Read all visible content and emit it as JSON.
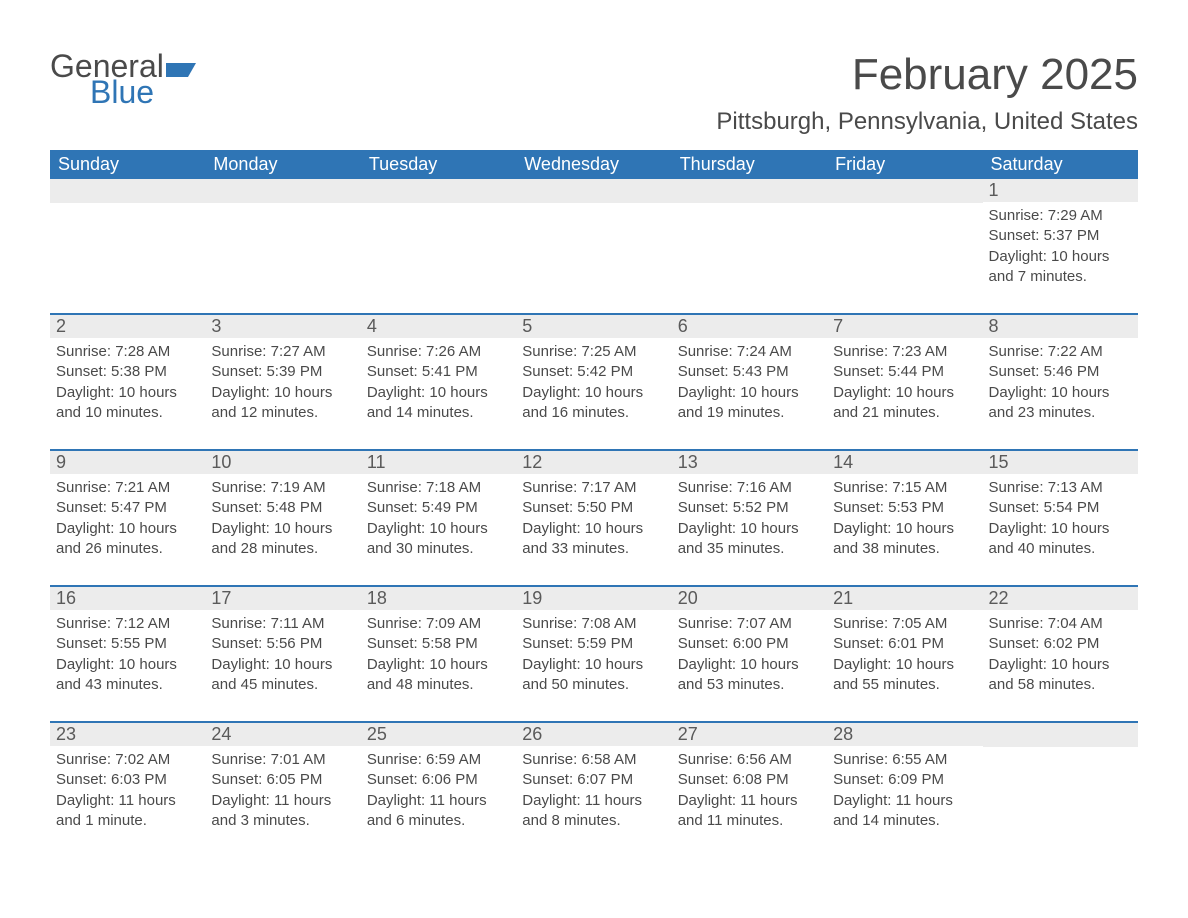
{
  "brand": {
    "word1": "General",
    "word2": "Blue",
    "accent_color": "#2f75b5"
  },
  "title": "February 2025",
  "location": "Pittsburgh, Pennsylvania, United States",
  "header_bg": "#2f75b5",
  "header_text_color": "#ffffff",
  "daynum_bg": "#ececec",
  "border_color": "#2f75b5",
  "text_color": "#4a4a4a",
  "background_color": "#ffffff",
  "weekdays": [
    "Sunday",
    "Monday",
    "Tuesday",
    "Wednesday",
    "Thursday",
    "Friday",
    "Saturday"
  ],
  "weeks": [
    [
      {
        "n": "",
        "sr": "",
        "ss": "",
        "dl": ""
      },
      {
        "n": "",
        "sr": "",
        "ss": "",
        "dl": ""
      },
      {
        "n": "",
        "sr": "",
        "ss": "",
        "dl": ""
      },
      {
        "n": "",
        "sr": "",
        "ss": "",
        "dl": ""
      },
      {
        "n": "",
        "sr": "",
        "ss": "",
        "dl": ""
      },
      {
        "n": "",
        "sr": "",
        "ss": "",
        "dl": ""
      },
      {
        "n": "1",
        "sr": "Sunrise: 7:29 AM",
        "ss": "Sunset: 5:37 PM",
        "dl": "Daylight: 10 hours and 7 minutes."
      }
    ],
    [
      {
        "n": "2",
        "sr": "Sunrise: 7:28 AM",
        "ss": "Sunset: 5:38 PM",
        "dl": "Daylight: 10 hours and 10 minutes."
      },
      {
        "n": "3",
        "sr": "Sunrise: 7:27 AM",
        "ss": "Sunset: 5:39 PM",
        "dl": "Daylight: 10 hours and 12 minutes."
      },
      {
        "n": "4",
        "sr": "Sunrise: 7:26 AM",
        "ss": "Sunset: 5:41 PM",
        "dl": "Daylight: 10 hours and 14 minutes."
      },
      {
        "n": "5",
        "sr": "Sunrise: 7:25 AM",
        "ss": "Sunset: 5:42 PM",
        "dl": "Daylight: 10 hours and 16 minutes."
      },
      {
        "n": "6",
        "sr": "Sunrise: 7:24 AM",
        "ss": "Sunset: 5:43 PM",
        "dl": "Daylight: 10 hours and 19 minutes."
      },
      {
        "n": "7",
        "sr": "Sunrise: 7:23 AM",
        "ss": "Sunset: 5:44 PM",
        "dl": "Daylight: 10 hours and 21 minutes."
      },
      {
        "n": "8",
        "sr": "Sunrise: 7:22 AM",
        "ss": "Sunset: 5:46 PM",
        "dl": "Daylight: 10 hours and 23 minutes."
      }
    ],
    [
      {
        "n": "9",
        "sr": "Sunrise: 7:21 AM",
        "ss": "Sunset: 5:47 PM",
        "dl": "Daylight: 10 hours and 26 minutes."
      },
      {
        "n": "10",
        "sr": "Sunrise: 7:19 AM",
        "ss": "Sunset: 5:48 PM",
        "dl": "Daylight: 10 hours and 28 minutes."
      },
      {
        "n": "11",
        "sr": "Sunrise: 7:18 AM",
        "ss": "Sunset: 5:49 PM",
        "dl": "Daylight: 10 hours and 30 minutes."
      },
      {
        "n": "12",
        "sr": "Sunrise: 7:17 AM",
        "ss": "Sunset: 5:50 PM",
        "dl": "Daylight: 10 hours and 33 minutes."
      },
      {
        "n": "13",
        "sr": "Sunrise: 7:16 AM",
        "ss": "Sunset: 5:52 PM",
        "dl": "Daylight: 10 hours and 35 minutes."
      },
      {
        "n": "14",
        "sr": "Sunrise: 7:15 AM",
        "ss": "Sunset: 5:53 PM",
        "dl": "Daylight: 10 hours and 38 minutes."
      },
      {
        "n": "15",
        "sr": "Sunrise: 7:13 AM",
        "ss": "Sunset: 5:54 PM",
        "dl": "Daylight: 10 hours and 40 minutes."
      }
    ],
    [
      {
        "n": "16",
        "sr": "Sunrise: 7:12 AM",
        "ss": "Sunset: 5:55 PM",
        "dl": "Daylight: 10 hours and 43 minutes."
      },
      {
        "n": "17",
        "sr": "Sunrise: 7:11 AM",
        "ss": "Sunset: 5:56 PM",
        "dl": "Daylight: 10 hours and 45 minutes."
      },
      {
        "n": "18",
        "sr": "Sunrise: 7:09 AM",
        "ss": "Sunset: 5:58 PM",
        "dl": "Daylight: 10 hours and 48 minutes."
      },
      {
        "n": "19",
        "sr": "Sunrise: 7:08 AM",
        "ss": "Sunset: 5:59 PM",
        "dl": "Daylight: 10 hours and 50 minutes."
      },
      {
        "n": "20",
        "sr": "Sunrise: 7:07 AM",
        "ss": "Sunset: 6:00 PM",
        "dl": "Daylight: 10 hours and 53 minutes."
      },
      {
        "n": "21",
        "sr": "Sunrise: 7:05 AM",
        "ss": "Sunset: 6:01 PM",
        "dl": "Daylight: 10 hours and 55 minutes."
      },
      {
        "n": "22",
        "sr": "Sunrise: 7:04 AM",
        "ss": "Sunset: 6:02 PM",
        "dl": "Daylight: 10 hours and 58 minutes."
      }
    ],
    [
      {
        "n": "23",
        "sr": "Sunrise: 7:02 AM",
        "ss": "Sunset: 6:03 PM",
        "dl": "Daylight: 11 hours and 1 minute."
      },
      {
        "n": "24",
        "sr": "Sunrise: 7:01 AM",
        "ss": "Sunset: 6:05 PM",
        "dl": "Daylight: 11 hours and 3 minutes."
      },
      {
        "n": "25",
        "sr": "Sunrise: 6:59 AM",
        "ss": "Sunset: 6:06 PM",
        "dl": "Daylight: 11 hours and 6 minutes."
      },
      {
        "n": "26",
        "sr": "Sunrise: 6:58 AM",
        "ss": "Sunset: 6:07 PM",
        "dl": "Daylight: 11 hours and 8 minutes."
      },
      {
        "n": "27",
        "sr": "Sunrise: 6:56 AM",
        "ss": "Sunset: 6:08 PM",
        "dl": "Daylight: 11 hours and 11 minutes."
      },
      {
        "n": "28",
        "sr": "Sunrise: 6:55 AM",
        "ss": "Sunset: 6:09 PM",
        "dl": "Daylight: 11 hours and 14 minutes."
      },
      {
        "n": "",
        "sr": "",
        "ss": "",
        "dl": ""
      }
    ]
  ]
}
